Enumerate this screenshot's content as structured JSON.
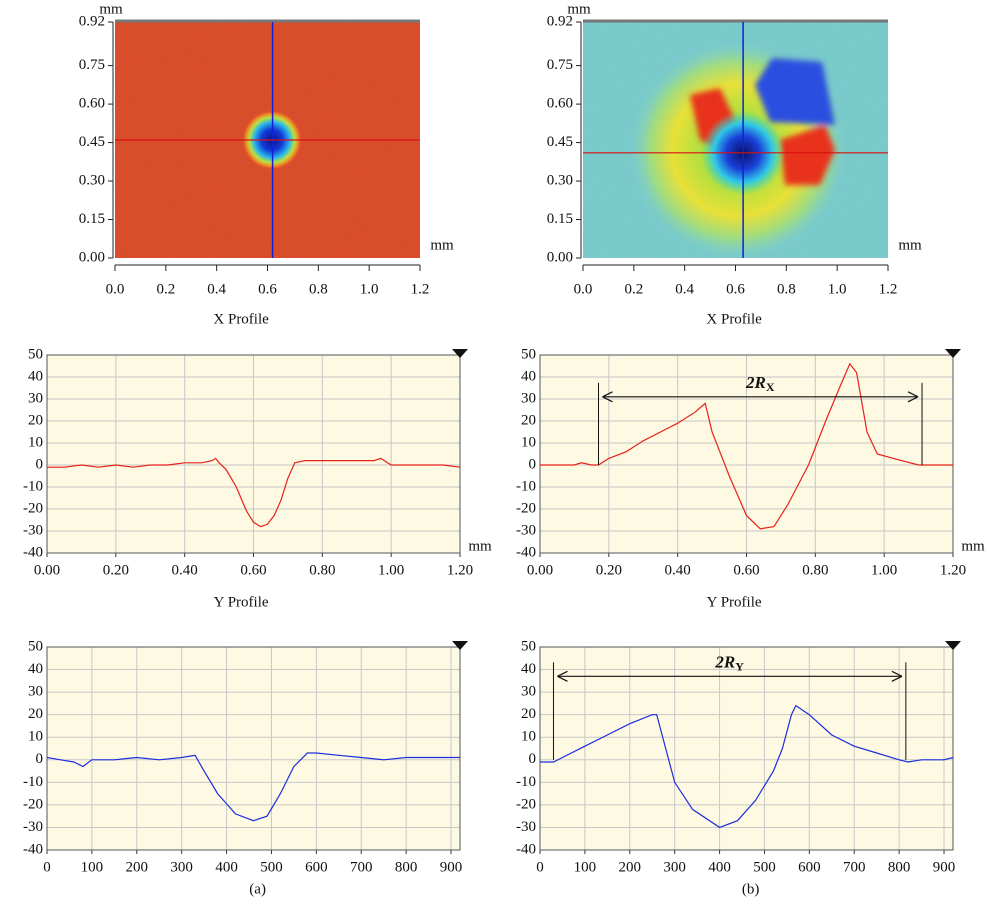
{
  "chart_data": [
    {
      "type": "heatmap",
      "ylabel": "mm",
      "xlabel": "mm",
      "xlim": [
        0,
        1.2
      ],
      "xticks": [
        {
          "value": 0,
          "label": "0.0"
        },
        0.2,
        0.4,
        0.6,
        0.8,
        {
          "value": 1,
          "label": "1.0"
        },
        1.2
      ],
      "ylim": [
        0,
        0.92
      ],
      "yticks": [
        {
          "value": 0,
          "label": "0.00"
        },
        0.15,
        {
          "value": 0.3,
          "label": "0.30"
        },
        0.45,
        {
          "value": 0.6,
          "label": "0.60"
        },
        0.75,
        0.92
      ],
      "crosshair": [
        0.62,
        0.46
      ]
    },
    {
      "type": "heatmap",
      "ylabel": "mm",
      "xlabel": "mm",
      "xlim": [
        0,
        1.2
      ],
      "xticks": [
        {
          "value": 0,
          "label": "0.0"
        },
        0.2,
        0.4,
        0.6,
        0.8,
        {
          "value": 1,
          "label": "1.0"
        },
        1.2
      ],
      "ylim": [
        0,
        0.92
      ],
      "yticks": [
        {
          "value": 0,
          "label": "0.00"
        },
        0.15,
        {
          "value": 0.3,
          "label": "0.30"
        },
        0.45,
        {
          "value": 0.6,
          "label": "0.60"
        },
        0.75,
        0.92
      ],
      "crosshair": [
        0.63,
        0.41
      ]
    },
    {
      "type": "line",
      "title": "X Profile",
      "xlabel": "mm",
      "xlim": [
        0,
        1.2
      ],
      "xticks": [
        {
          "value": 0,
          "label": "0.00"
        },
        {
          "value": 0.2,
          "label": "0.20"
        },
        {
          "value": 0.4,
          "label": "0.40"
        },
        {
          "value": 0.6,
          "label": "0.60"
        },
        {
          "value": 0.8,
          "label": "0.80"
        },
        {
          "value": 1,
          "label": "1.00"
        },
        {
          "value": 1.2,
          "label": "1.20"
        }
      ],
      "ylim": [
        -40,
        50
      ],
      "yticks": [
        -40,
        -30,
        -20,
        -10,
        0,
        10,
        20,
        30,
        40,
        50
      ],
      "grid": true,
      "color": "#e8201a",
      "x": [
        0,
        0.05,
        0.1,
        0.15,
        0.2,
        0.25,
        0.3,
        0.35,
        0.4,
        0.45,
        0.48,
        0.49,
        0.5,
        0.52,
        0.55,
        0.58,
        0.6,
        0.62,
        0.64,
        0.66,
        0.68,
        0.7,
        0.72,
        0.75,
        0.8,
        0.85,
        0.9,
        0.95,
        0.97,
        1.0,
        1.05,
        1.1,
        1.15,
        1.2
      ],
      "values": [
        -1,
        -1,
        0,
        -1,
        0,
        -1,
        0,
        0,
        1,
        1,
        2,
        3,
        1,
        -2,
        -10,
        -21,
        -26,
        -28,
        -27,
        -23,
        -16,
        -6,
        1,
        2,
        2,
        2,
        2,
        2,
        3,
        0,
        0,
        0,
        0,
        -1
      ]
    },
    {
      "type": "line",
      "title": "X Profile",
      "xlabel": "mm",
      "xlim": [
        0,
        1.2
      ],
      "xticks": [
        {
          "value": 0,
          "label": "0.00"
        },
        {
          "value": 0.2,
          "label": "0.20"
        },
        {
          "value": 0.4,
          "label": "0.40"
        },
        {
          "value": 0.6,
          "label": "0.60"
        },
        {
          "value": 0.8,
          "label": "0.80"
        },
        {
          "value": 1,
          "label": "1.00"
        },
        {
          "value": 1.2,
          "label": "1.20"
        }
      ],
      "ylim": [
        -40,
        50
      ],
      "yticks": [
        -40,
        -30,
        -20,
        -10,
        0,
        10,
        20,
        30,
        40,
        50
      ],
      "grid": true,
      "color": "#e8201a",
      "x": [
        0,
        0.05,
        0.1,
        0.12,
        0.15,
        0.17,
        0.2,
        0.25,
        0.3,
        0.35,
        0.4,
        0.45,
        0.48,
        0.5,
        0.55,
        0.6,
        0.64,
        0.68,
        0.72,
        0.78,
        0.83,
        0.87,
        0.9,
        0.92,
        0.95,
        0.98,
        1.05,
        1.1,
        1.15,
        1.2
      ],
      "values": [
        0,
        0,
        0,
        1,
        0,
        0,
        3,
        6,
        11,
        15,
        19,
        24,
        28,
        15,
        -5,
        -23,
        -29,
        -28,
        -18,
        0,
        20,
        35,
        46,
        42,
        15,
        5,
        2,
        0,
        0,
        0
      ],
      "annotation": {
        "text": "2R",
        "sub": "X"
      },
      "span": [
        0.17,
        1.11
      ],
      "span_y": 31
    },
    {
      "type": "line",
      "title": "Y Profile",
      "xlim": [
        0,
        920
      ],
      "xticks": [
        0,
        100,
        200,
        300,
        400,
        500,
        600,
        700,
        800,
        900
      ],
      "ylim": [
        -40,
        50
      ],
      "yticks": [
        -40,
        -30,
        -20,
        -10,
        0,
        10,
        20,
        30,
        40,
        50
      ],
      "grid": true,
      "color": "#1a2ee0",
      "caption": "(a)",
      "x": [
        0,
        30,
        60,
        80,
        100,
        150,
        200,
        250,
        300,
        330,
        350,
        380,
        420,
        460,
        490,
        520,
        550,
        580,
        600,
        650,
        700,
        750,
        800,
        850,
        900,
        920
      ],
      "values": [
        1,
        0,
        -1,
        -3,
        0,
        0,
        1,
        0,
        1,
        2,
        -5,
        -15,
        -24,
        -27,
        -25,
        -15,
        -3,
        3,
        3,
        2,
        1,
        0,
        1,
        1,
        1,
        1
      ]
    },
    {
      "type": "line",
      "title": "Y Profile",
      "xlim": [
        0,
        920
      ],
      "xticks": [
        0,
        100,
        200,
        300,
        400,
        500,
        600,
        700,
        800,
        900
      ],
      "ylim": [
        -40,
        50
      ],
      "yticks": [
        -40,
        -30,
        -20,
        -10,
        0,
        10,
        20,
        30,
        40,
        50
      ],
      "grid": true,
      "color": "#1a2ee0",
      "caption": "(b)",
      "x": [
        0,
        30,
        50,
        100,
        150,
        200,
        250,
        260,
        280,
        300,
        340,
        400,
        440,
        480,
        520,
        540,
        560,
        570,
        600,
        650,
        700,
        750,
        800,
        820,
        850,
        900,
        920
      ],
      "values": [
        -1,
        -1,
        1,
        6,
        11,
        16,
        20,
        20,
        5,
        -10,
        -22,
        -30,
        -27,
        -18,
        -5,
        5,
        20,
        24,
        20,
        11,
        6,
        3,
        0,
        -1,
        0,
        0,
        1
      ],
      "annotation": {
        "text": "2R",
        "sub": "Y"
      },
      "span": [
        30,
        815
      ],
      "span_y": 37
    }
  ]
}
